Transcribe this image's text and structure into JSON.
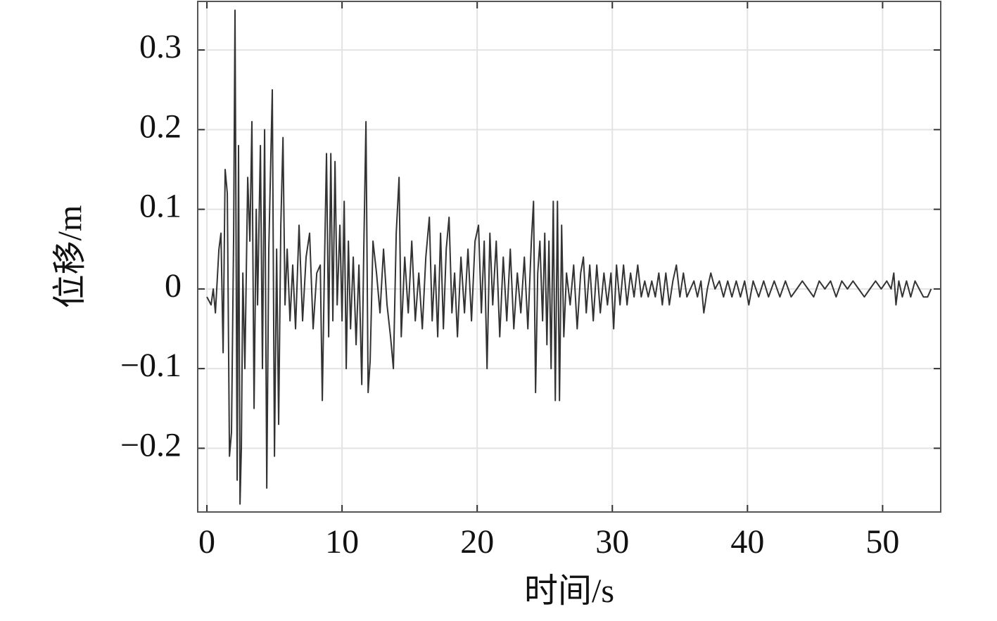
{
  "chart_data": {
    "type": "line",
    "xlabel": "时间/s",
    "ylabel": "位移/m",
    "color": "#333333",
    "grid": true,
    "xlim": [
      -0.68,
      54.3
    ],
    "xticks": [
      0,
      10,
      20,
      30,
      40,
      50
    ],
    "ylim": [
      -0.28,
      0.361
    ],
    "yticks": [
      {
        "value": -0.2,
        "label": "−0.2"
      },
      {
        "value": -0.1,
        "label": "−0.1"
      },
      0,
      0.1,
      0.2,
      0.3
    ],
    "x": [
      0,
      0.31,
      0.47,
      0.63,
      0.89,
      1.04,
      1.2,
      1.35,
      1.51,
      1.67,
      1.82,
      1.98,
      2.08,
      2.24,
      2.34,
      2.45,
      2.55,
      2.66,
      2.81,
      3.02,
      3.18,
      3.33,
      3.49,
      3.65,
      3.75,
      3.96,
      4.11,
      4.27,
      4.43,
      4.58,
      4.84,
      5.0,
      5.16,
      5.31,
      5.47,
      5.63,
      5.78,
      5.94,
      6.15,
      6.35,
      6.56,
      6.82,
      7.08,
      7.34,
      7.6,
      7.86,
      8.13,
      8.39,
      8.54,
      8.7,
      8.85,
      9.01,
      9.17,
      9.32,
      9.48,
      9.64,
      9.84,
      10.0,
      10.16,
      10.31,
      10.47,
      10.63,
      10.83,
      11.04,
      11.25,
      11.46,
      11.61,
      11.77,
      11.93,
      12.08,
      12.29,
      12.55,
      12.81,
      13.07,
      13.33,
      13.59,
      13.8,
      14.01,
      14.22,
      14.38,
      14.64,
      14.9,
      15.16,
      15.42,
      15.68,
      15.94,
      16.2,
      16.46,
      16.67,
      16.88,
      17.08,
      17.29,
      17.5,
      17.71,
      17.92,
      18.13,
      18.33,
      18.54,
      18.8,
      19.06,
      19.32,
      19.58,
      19.84,
      20.1,
      20.31,
      20.52,
      20.73,
      20.94,
      21.15,
      21.41,
      21.67,
      21.93,
      22.19,
      22.45,
      22.71,
      22.97,
      23.23,
      23.49,
      23.75,
      24.01,
      24.17,
      24.32,
      24.48,
      24.64,
      24.84,
      25.0,
      25.16,
      25.31,
      25.47,
      25.63,
      25.78,
      25.94,
      26.09,
      26.25,
      26.41,
      26.61,
      26.88,
      27.14,
      27.4,
      27.66,
      27.86,
      28.07,
      28.33,
      28.59,
      28.85,
      29.11,
      29.38,
      29.64,
      29.9,
      30.1,
      30.31,
      30.57,
      30.83,
      31.09,
      31.35,
      31.61,
      31.88,
      32.14,
      32.4,
      32.66,
      32.92,
      33.18,
      33.44,
      33.7,
      33.96,
      34.22,
      34.48,
      34.74,
      35.0,
      35.26,
      35.52,
      35.78,
      36.04,
      36.3,
      36.56,
      36.77,
      37.03,
      37.29,
      37.6,
      37.92,
      38.23,
      38.54,
      38.85,
      39.17,
      39.48,
      39.79,
      40.1,
      40.42,
      40.83,
      41.2,
      41.56,
      41.98,
      42.4,
      42.81,
      43.23,
      43.65,
      44.06,
      44.48,
      44.9,
      45.31,
      45.73,
      46.15,
      46.56,
      46.98,
      47.4,
      47.81,
      48.23,
      48.65,
      49.06,
      49.48,
      49.9,
      50.31,
      50.63,
      50.83,
      50.99,
      51.2,
      51.46,
      51.77,
      52.08,
      52.4,
      52.71,
      53.02,
      53.33,
      53.59
    ],
    "values": [
      -0.01,
      -0.02,
      0,
      -0.03,
      0.05,
      0.07,
      -0.08,
      0.15,
      0.12,
      -0.21,
      -0.18,
      0.07,
      0.35,
      -0.24,
      0.18,
      -0.27,
      -0.2,
      0.02,
      -0.1,
      0.14,
      0.06,
      0.21,
      -0.15,
      0.1,
      -0.02,
      0.18,
      -0.1,
      0.2,
      -0.25,
      0.05,
      0.25,
      -0.21,
      0.05,
      -0.17,
      0.08,
      0.19,
      -0.02,
      0.05,
      -0.04,
      0.03,
      -0.05,
      0.08,
      -0.04,
      0.04,
      0.07,
      -0.05,
      0.02,
      0.03,
      -0.14,
      0.03,
      0.17,
      -0.06,
      0.17,
      -0.04,
      0.16,
      -0.02,
      0.08,
      -0.04,
      0.11,
      -0.1,
      0.06,
      -0.05,
      0.04,
      -0.07,
      0.03,
      -0.12,
      0.05,
      0.21,
      -0.13,
      -0.09,
      0.06,
      0.02,
      -0.03,
      0.05,
      -0.02,
      -0.06,
      -0.1,
      0.07,
      0.14,
      -0.06,
      0.04,
      -0.03,
      0.06,
      -0.04,
      0.02,
      -0.05,
      0.04,
      0.09,
      -0.04,
      0.03,
      -0.06,
      0.07,
      -0.05,
      0.05,
      0.09,
      -0.03,
      0.02,
      -0.06,
      0.04,
      -0.03,
      0.05,
      -0.04,
      0.06,
      0.08,
      -0.03,
      0.06,
      -0.1,
      0.07,
      -0.02,
      0.06,
      -0.06,
      0.04,
      -0.04,
      0.05,
      -0.05,
      0.02,
      -0.03,
      0.04,
      -0.05,
      0.06,
      0.11,
      -0.13,
      0.02,
      0.06,
      -0.04,
      0.07,
      -0.07,
      0.06,
      -0.1,
      0.11,
      -0.14,
      0.11,
      -0.14,
      0.08,
      -0.06,
      0.02,
      -0.02,
      0.03,
      -0.05,
      0.02,
      0.04,
      -0.03,
      0.03,
      -0.04,
      0.03,
      -0.03,
      0.02,
      -0.02,
      0.02,
      -0.05,
      0.03,
      -0.02,
      0.03,
      -0.02,
      0.02,
      -0.01,
      0.03,
      -0.01,
      0.01,
      -0.01,
      0.01,
      -0.01,
      0.02,
      -0.02,
      0.02,
      -0.02,
      0.01,
      0.03,
      -0.01,
      0.02,
      -0.01,
      0,
      0.01,
      -0.01,
      0.01,
      -0.03,
      0,
      0.02,
      0,
      0.01,
      -0.01,
      0.01,
      -0.01,
      0.01,
      -0.01,
      0.01,
      -0.02,
      0.01,
      -0.01,
      0.01,
      -0.01,
      0.01,
      -0.01,
      0.01,
      -0.01,
      0,
      0.01,
      0,
      -0.01,
      0.01,
      0,
      0.01,
      -0.01,
      0.01,
      0,
      0.01,
      0,
      -0.01,
      0,
      0.01,
      0,
      0.01,
      0,
      0.02,
      -0.02,
      0.01,
      -0.01,
      0.01,
      -0.01,
      0.01,
      0,
      -0.01,
      -0.01,
      0
    ]
  }
}
